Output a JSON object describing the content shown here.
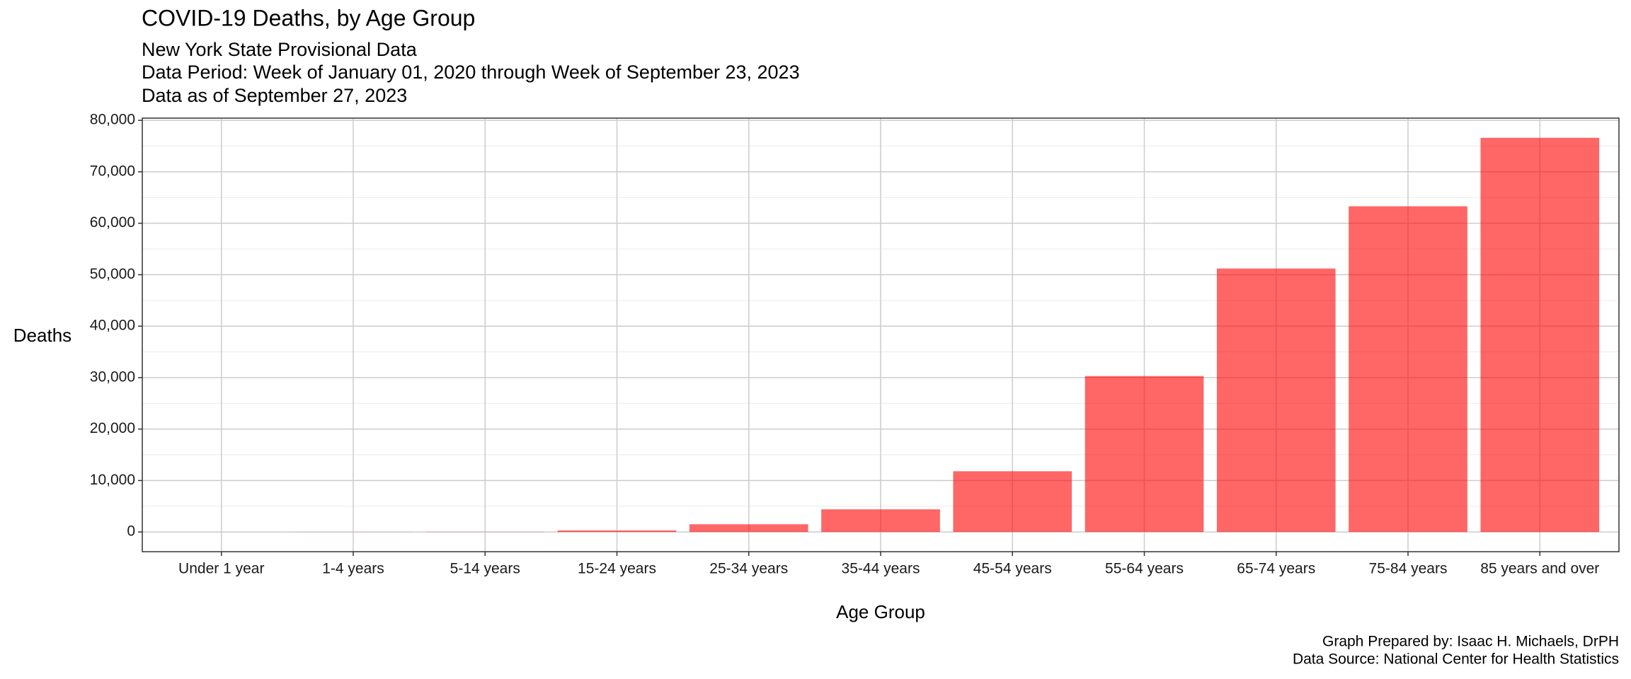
{
  "chart_data": {
    "type": "bar",
    "title": "COVID-19 Deaths, by Age Group",
    "subtitle": [
      "New York State Provisional Data",
      "Data Period: Week of January 01, 2020 through Week of September 23, 2023",
      "Data as of September 27, 2023"
    ],
    "x_label": "Age Group",
    "y_label": "Deaths",
    "caption": [
      "Graph Prepared by: Isaac H. Michaels, DrPH",
      "Data Source: National Center for Health Statistics"
    ],
    "categories": [
      "Under 1 year",
      "1-4 years",
      "5-14 years",
      "15-24 years",
      "25-34 years",
      "35-44 years",
      "45-54 years",
      "55-64 years",
      "65-74 years",
      "75-84 years",
      "85 years and over"
    ],
    "values": [
      10,
      15,
      40,
      300,
      1500,
      4400,
      11800,
      30300,
      51200,
      63300,
      76600
    ],
    "color": "#ff0000",
    "opacity": 0.6,
    "ylim": [
      -3830,
      80430
    ],
    "yticks": [
      {
        "value": 0,
        "label": "0"
      },
      {
        "value": 10000,
        "label": "10,000"
      },
      {
        "value": 20000,
        "label": "20,000"
      },
      {
        "value": 30000,
        "label": "30,000"
      },
      {
        "value": 40000,
        "label": "40,000"
      },
      {
        "value": 50000,
        "label": "50,000"
      },
      {
        "value": 60000,
        "label": "60,000"
      },
      {
        "value": 70000,
        "label": "70,000"
      },
      {
        "value": 80000,
        "label": "80,000"
      }
    ],
    "y_minor_ticks": [
      5000,
      15000,
      25000,
      35000,
      45000,
      55000,
      65000,
      75000
    ],
    "grid": true
  }
}
